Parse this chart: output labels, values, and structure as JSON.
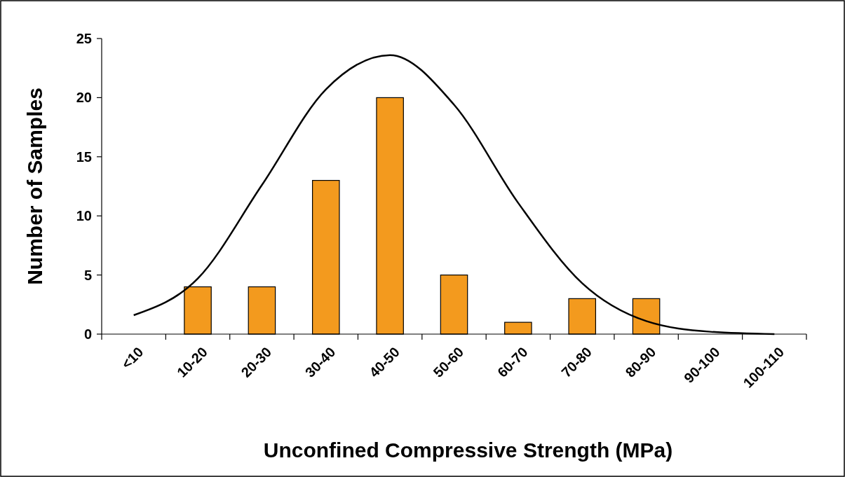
{
  "chart_data": {
    "type": "bar",
    "xlabel": "Unconfined Compressive Strength (MPa)",
    "ylabel": "Number of Samples",
    "categories": [
      "<10",
      "10-20",
      "20-30",
      "30-40",
      "40-50",
      "50-60",
      "60-70",
      "70-80",
      "80-90",
      "90-100",
      "100-110"
    ],
    "series": [
      {
        "color": "#f39a1e",
        "values": [
          0,
          4,
          4,
          13,
          20,
          5,
          1,
          3,
          3,
          0,
          0
        ]
      },
      {
        "type": "line",
        "color": "#000000",
        "values": [
          1.6,
          4.7,
          12.6,
          20.7,
          23.6,
          19.4,
          11.1,
          4.3,
          1.1,
          0.2,
          0
        ]
      }
    ],
    "ylim": [
      0,
      25
    ],
    "yticks": [
      0,
      5,
      10,
      15,
      20,
      25
    ],
    "grid": false,
    "marker": "none",
    "line_style": "solid"
  }
}
